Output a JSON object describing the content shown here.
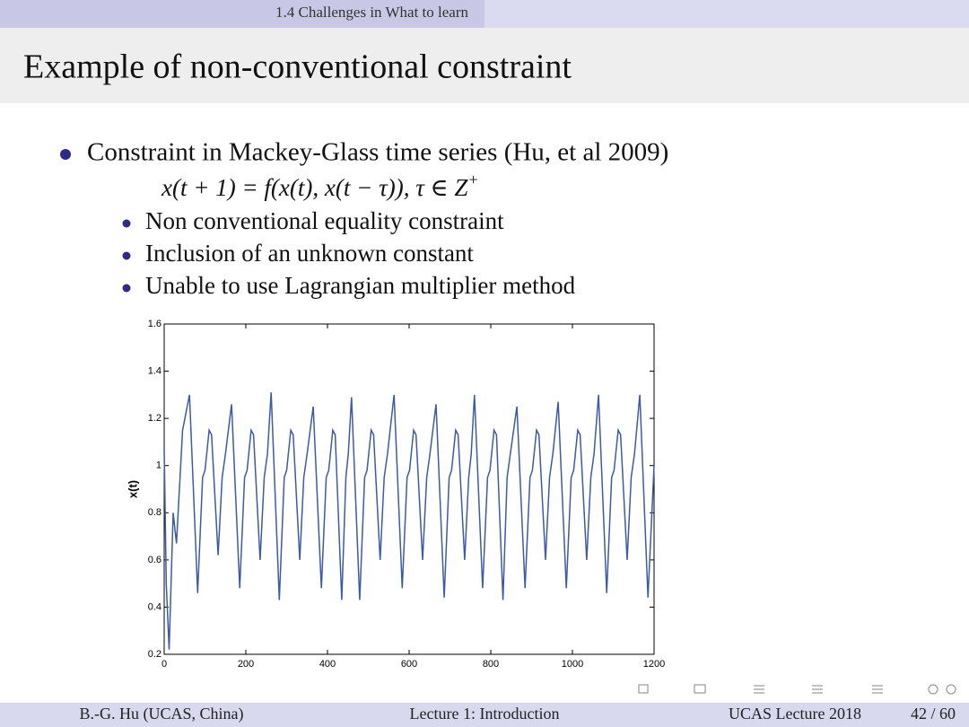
{
  "header": {
    "section": "1.4 Challenges in What to learn"
  },
  "title": "Example of non-conventional constraint",
  "bullet": "Constraint in Mackey-Glass time series (Hu, et al 2009)",
  "formula": {
    "text": "x(t + 1) = f(x(t), x(t − τ)),  τ ∈ Z",
    "sup": "+"
  },
  "subbullets": [
    "Non conventional equality constraint",
    "Inclusion of an unknown constant",
    "Unable to use Lagrangian multiplier method"
  ],
  "chart_data": {
    "type": "line",
    "ylabel": "x(t)",
    "color": "#3b5ba8",
    "xlim": [
      0,
      1200
    ],
    "ylim": [
      0.2,
      1.6
    ],
    "xticks": [
      0,
      200,
      400,
      600,
      800,
      1000,
      1200
    ],
    "yticks": [
      0.2,
      0.4,
      0.6,
      0.8,
      1,
      1.2,
      1.4,
      1.6
    ],
    "x": [
      0,
      5,
      12,
      22,
      30,
      45,
      62,
      82,
      94,
      100,
      110,
      116,
      132,
      142,
      150,
      165,
      185,
      197,
      203,
      213,
      219,
      235,
      245,
      253,
      262,
      282,
      294,
      300,
      310,
      316,
      332,
      342,
      350,
      365,
      385,
      397,
      403,
      413,
      419,
      435,
      445,
      451,
      459,
      479,
      491,
      497,
      507,
      513,
      529,
      539,
      547,
      563,
      583,
      595,
      601,
      611,
      617,
      633,
      643,
      651,
      666,
      686,
      698,
      704,
      714,
      720,
      736,
      746,
      752,
      760,
      780,
      792,
      798,
      808,
      814,
      830,
      840,
      848,
      864,
      884,
      896,
      902,
      912,
      918,
      934,
      944,
      952,
      965,
      985,
      997,
      1003,
      1013,
      1019,
      1035,
      1045,
      1053,
      1064,
      1084,
      1096,
      1102,
      1112,
      1118,
      1134,
      1144,
      1152,
      1165,
      1185,
      1200
    ],
    "values": [
      1.07,
      0.5,
      0.22,
      0.8,
      0.67,
      1.15,
      1.3,
      0.46,
      0.95,
      0.98,
      1.15,
      1.13,
      0.62,
      0.95,
      1.05,
      1.26,
      0.48,
      0.95,
      0.98,
      1.15,
      1.13,
      0.6,
      0.95,
      1.05,
      1.31,
      0.43,
      0.95,
      0.98,
      1.15,
      1.13,
      0.6,
      0.95,
      1.05,
      1.25,
      0.48,
      0.95,
      0.98,
      1.15,
      1.13,
      0.43,
      0.95,
      1.05,
      1.29,
      0.43,
      0.95,
      0.98,
      1.15,
      1.13,
      0.6,
      0.95,
      1.05,
      1.3,
      0.48,
      0.95,
      0.98,
      1.15,
      1.13,
      0.6,
      0.95,
      1.05,
      1.26,
      0.44,
      0.95,
      0.98,
      1.15,
      1.13,
      0.6,
      0.95,
      1.05,
      1.3,
      0.48,
      0.95,
      0.98,
      1.15,
      1.13,
      0.43,
      0.95,
      1.05,
      1.25,
      0.48,
      0.95,
      0.98,
      1.15,
      1.13,
      0.6,
      0.95,
      1.05,
      1.27,
      0.48,
      0.95,
      0.98,
      1.15,
      1.13,
      0.6,
      0.95,
      1.05,
      1.3,
      0.46,
      0.95,
      0.98,
      1.15,
      1.13,
      0.6,
      0.95,
      1.05,
      1.3,
      0.44,
      1.0
    ]
  },
  "footer": {
    "author": "B.-G. Hu (UCAS, China)",
    "lecture": "Lecture 1: Introduction",
    "event": "UCAS Lecture 2018",
    "page": "42 / 60"
  }
}
